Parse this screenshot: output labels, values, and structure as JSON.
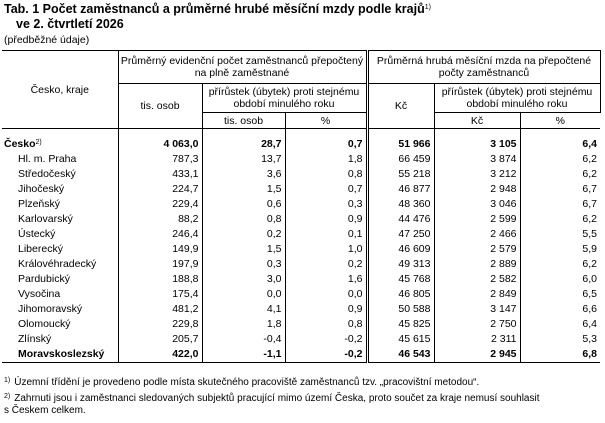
{
  "header": {
    "title": "Tab. 1 Počet zaměstnanců a průměrné hrubé měsíční mzdy podle krajů",
    "title_note": "1)",
    "title_line2": "ve 2. čtvrtletí 2026",
    "subtitle": "(předběžné údaje)"
  },
  "table": {
    "columns": {
      "region": "Česko, kraje",
      "employees": "Průměrný evidenční počet zaměstnanců přepočtený na plně zaměstnané",
      "wages": "Průměrná hrubá měsíční mzda na přepočtené počty zaměstnanců",
      "employees_unit": "tis. osob",
      "employees_change": "přírůstek (úbytek) proti stejnému období minulého roku",
      "employees_change_abs": "tis. osob",
      "employees_change_pct": "%",
      "wages_unit": "Kč",
      "wages_change": "přírůstek (úbytek) proti stejnému období minulého roku",
      "wages_change_abs": "Kč",
      "wages_change_pct": "%"
    },
    "rows": [
      {
        "name": "Česko",
        "note": "2)",
        "values": [
          "4 063,0",
          "28,7",
          "0,7",
          "51 966",
          "3 105",
          "6,4"
        ]
      },
      {
        "name": "Hl. m. Praha",
        "values": [
          "787,3",
          "13,7",
          "1,8",
          "66 459",
          "3 874",
          "6,2"
        ]
      },
      {
        "name": "Středočeský",
        "values": [
          "433,1",
          "3,6",
          "0,8",
          "55 218",
          "3 212",
          "6,2"
        ]
      },
      {
        "name": "Jihočeský",
        "values": [
          "224,7",
          "1,5",
          "0,7",
          "46 877",
          "2 948",
          "6,7"
        ]
      },
      {
        "name": "Plzeňský",
        "values": [
          "229,4",
          "0,6",
          "0,3",
          "48 360",
          "3 046",
          "6,7"
        ]
      },
      {
        "name": "Karlovarský",
        "values": [
          "88,2",
          "0,8",
          "0,9",
          "44 476",
          "2 599",
          "6,2"
        ]
      },
      {
        "name": "Ústecký",
        "values": [
          "246,4",
          "0,2",
          "0,1",
          "47 250",
          "2 466",
          "5,5"
        ]
      },
      {
        "name": "Liberecký",
        "values": [
          "149,9",
          "1,5",
          "1,0",
          "46 609",
          "2 579",
          "5,9"
        ]
      },
      {
        "name": "Královéhradecký",
        "values": [
          "197,9",
          "0,3",
          "0,2",
          "49 313",
          "2 889",
          "6,2"
        ]
      },
      {
        "name": "Pardubický",
        "values": [
          "188,8",
          "3,0",
          "1,6",
          "45 768",
          "2 582",
          "6,0"
        ]
      },
      {
        "name": "Vysočina",
        "values": [
          "175,4",
          "0,0",
          "0,0",
          "46 805",
          "2 849",
          "6,5"
        ]
      },
      {
        "name": "Jihomoravský",
        "values": [
          "481,2",
          "4,1",
          "0,9",
          "50 588",
          "3 147",
          "6,6"
        ]
      },
      {
        "name": "Olomoucký",
        "values": [
          "229,8",
          "1,8",
          "0,8",
          "45 825",
          "2 750",
          "6,4"
        ]
      },
      {
        "name": "Zlínský",
        "values": [
          "205,7",
          "-0,4",
          "-0,2",
          "45 615",
          "2 311",
          "5,3"
        ]
      },
      {
        "name": "Moravskoslezský",
        "values": [
          "422,0",
          "-1,1",
          "-0,2",
          "46 543",
          "2 945",
          "6,8"
        ]
      }
    ]
  },
  "footnotes": [
    {
      "mark": "1)",
      "text": "Územní třídění je provedeno podle místa skutečného pracoviště zaměstnanců tzv. „pracovištní metodou“."
    },
    {
      "mark": "2)",
      "text": "Zahrnuti jsou i zaměstnanci sledovaných subjektů pracující mimo území Česka, proto součet za kraje nemusí souhlasit s Českem celkem."
    }
  ]
}
